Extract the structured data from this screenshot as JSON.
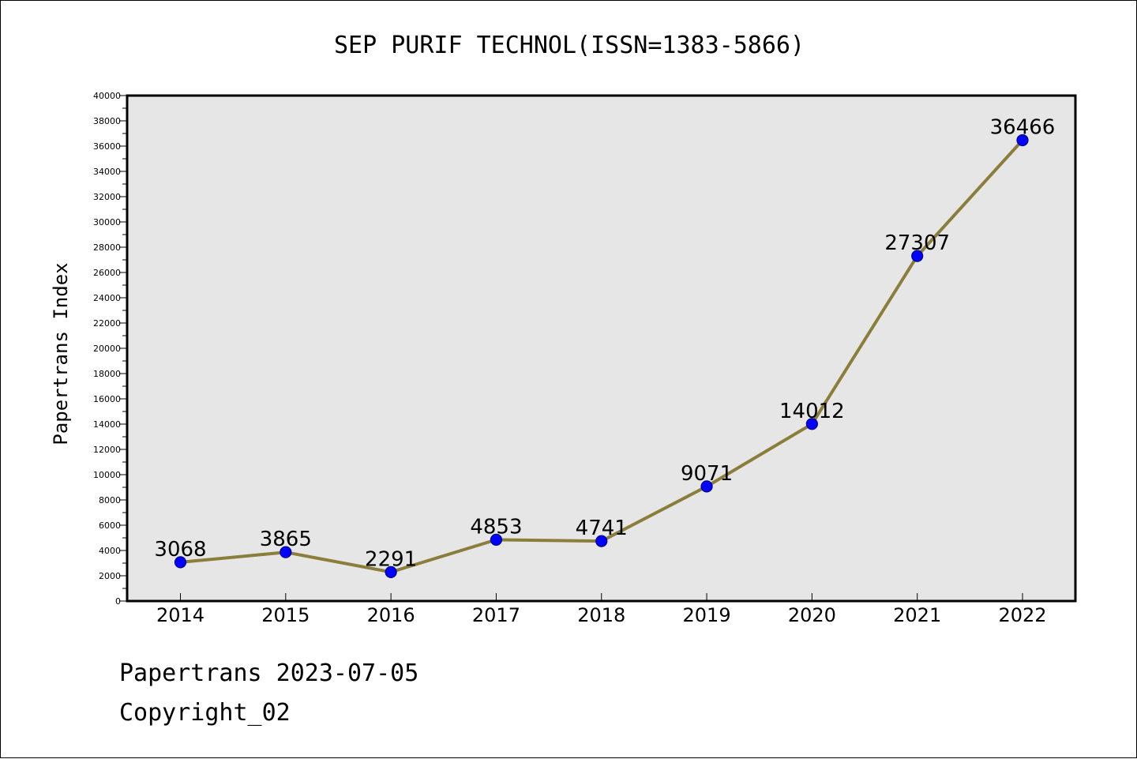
{
  "chart_data": {
    "type": "line",
    "title": "SEP PURIF TECHNOL(ISSN=1383-5866)",
    "xlabel": "",
    "ylabel": "Papertrans Index",
    "categories": [
      "2014",
      "2015",
      "2016",
      "2017",
      "2018",
      "2019",
      "2020",
      "2021",
      "2022"
    ],
    "series": [
      {
        "values": [
          3068,
          3865,
          2291,
          4853,
          4741,
          9071,
          14012,
          27307,
          36466
        ]
      }
    ],
    "data_labels": [
      "3068",
      "3865",
      "2291",
      "4853",
      "4741",
      "9071",
      "14012",
      "27307",
      "36466"
    ],
    "ylim": [
      0,
      40000
    ],
    "yticks": [
      "0",
      "2000",
      "4000",
      "6000",
      "8000",
      "10000",
      "12000",
      "14000",
      "16000",
      "18000",
      "20000",
      "22000",
      "24000",
      "26000",
      "28000",
      "30000",
      "32000",
      "34000",
      "36000",
      "38000",
      "40000"
    ],
    "grid": false,
    "legend": "none",
    "colors": {
      "line": "#8b7d3a",
      "marker_fill": "#0000ff",
      "marker_stroke": "#00008b",
      "plot_background": "#e6e6e6"
    }
  },
  "footer": {
    "line1": "Papertrans 2023-07-05",
    "line2": "Copyright_02"
  }
}
